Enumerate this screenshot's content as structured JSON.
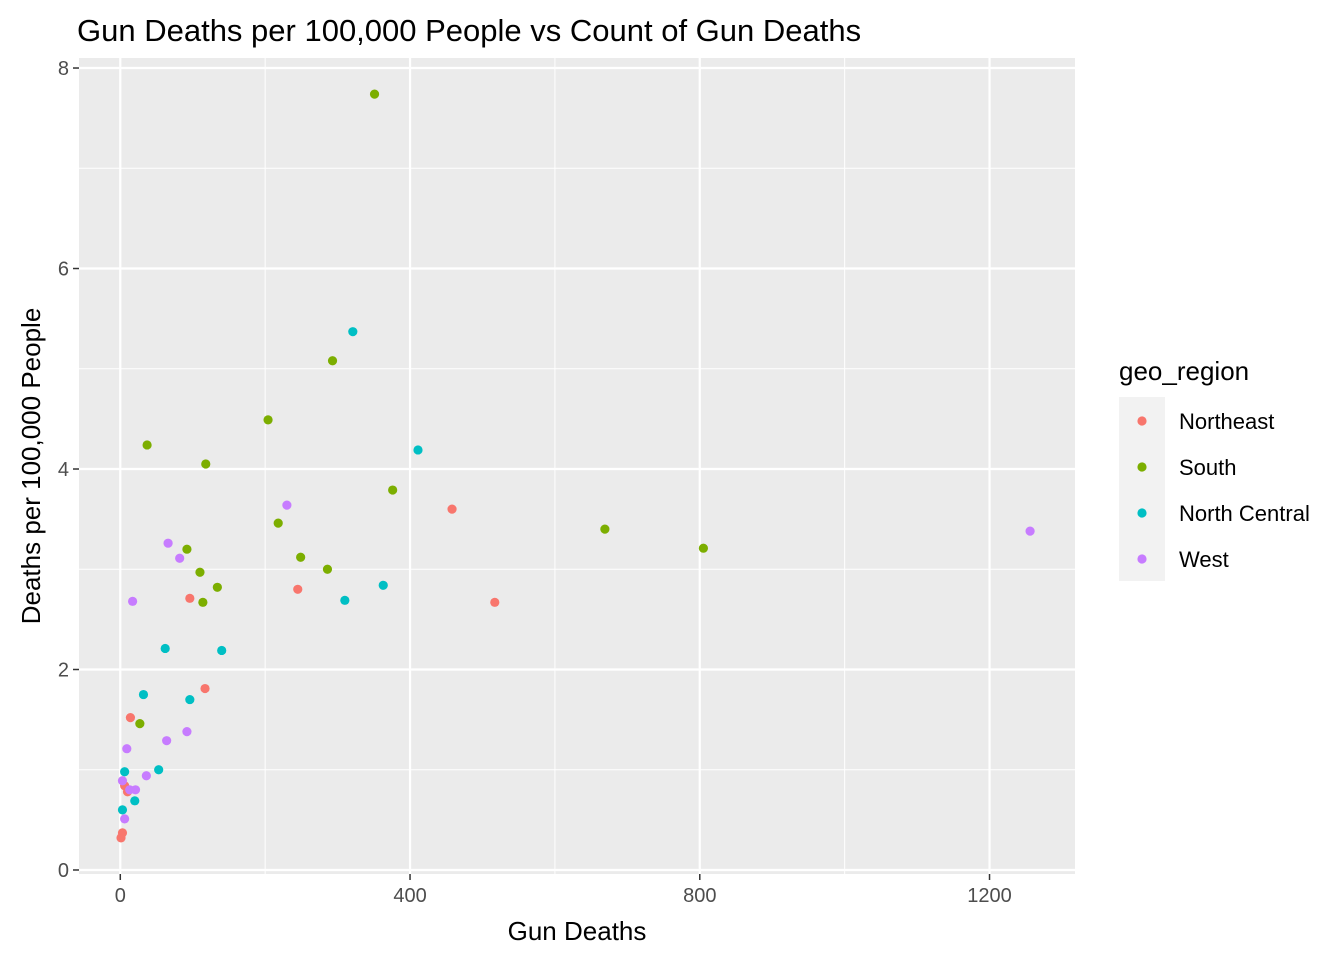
{
  "chart_data": {
    "type": "scatter",
    "title": "Gun Deaths per 100,000 People vs Count of Gun Deaths",
    "xlabel": "Gun Deaths",
    "ylabel": "Deaths per 100,000 People",
    "xlim": [
      -57,
      1318
    ],
    "ylim": [
      -0.04,
      8.1
    ],
    "xticks": [
      0,
      400,
      800,
      1200
    ],
    "xtick_labels": [
      "0",
      "400",
      "800",
      "1200"
    ],
    "yticks": [
      0,
      2,
      4,
      6,
      8
    ],
    "ytick_labels": [
      "0",
      "2",
      "4",
      "6",
      "8"
    ],
    "grid": true,
    "background": "#ebebeb",
    "legend": {
      "title": "geo_region",
      "position": "right"
    },
    "series": [
      {
        "name": "Northeast",
        "color": "#F8766D",
        "points": [
          [
            1,
            0.32
          ],
          [
            3,
            0.37
          ],
          [
            6,
            0.84
          ],
          [
            10,
            0.78
          ],
          [
            14,
            1.52
          ],
          [
            96,
            2.71
          ],
          [
            117,
            1.81
          ],
          [
            245,
            2.8
          ],
          [
            458,
            3.6
          ],
          [
            517,
            2.67
          ]
        ]
      },
      {
        "name": "South",
        "color": "#7CAE00",
        "points": [
          [
            27,
            1.46
          ],
          [
            37,
            4.24
          ],
          [
            92,
            3.2
          ],
          [
            110,
            2.97
          ],
          [
            114,
            2.67
          ],
          [
            118,
            4.05
          ],
          [
            134,
            2.82
          ],
          [
            204,
            4.49
          ],
          [
            218,
            3.46
          ],
          [
            249,
            3.12
          ],
          [
            286,
            3.0
          ],
          [
            293,
            5.08
          ],
          [
            351,
            7.74
          ],
          [
            376,
            3.79
          ],
          [
            669,
            3.4
          ],
          [
            805,
            3.21
          ]
        ]
      },
      {
        "name": "North Central",
        "color": "#00BFC4",
        "points": [
          [
            3,
            0.6
          ],
          [
            6,
            0.98
          ],
          [
            20,
            0.69
          ],
          [
            32,
            1.75
          ],
          [
            53,
            1.0
          ],
          [
            62,
            2.21
          ],
          [
            96,
            1.7
          ],
          [
            140,
            2.19
          ],
          [
            310,
            2.69
          ],
          [
            321,
            5.37
          ],
          [
            363,
            2.84
          ],
          [
            411,
            4.19
          ]
        ]
      },
      {
        "name": "West",
        "color": "#C77CFF",
        "points": [
          [
            3,
            0.89
          ],
          [
            6,
            0.51
          ],
          [
            9,
            1.21
          ],
          [
            13,
            0.8
          ],
          [
            17,
            2.68
          ],
          [
            21,
            0.8
          ],
          [
            36,
            0.94
          ],
          [
            64,
            1.29
          ],
          [
            66,
            3.26
          ],
          [
            82,
            3.11
          ],
          [
            92,
            1.38
          ],
          [
            230,
            3.64
          ],
          [
            1256,
            3.38
          ]
        ]
      }
    ]
  }
}
